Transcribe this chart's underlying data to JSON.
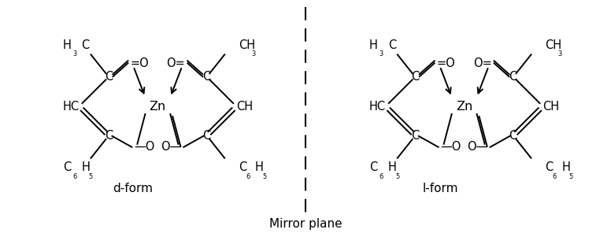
{
  "bg_color": "#ffffff",
  "fig_width": 7.76,
  "fig_height": 2.96,
  "dpi": 100,
  "mirror_label": "Mirror plane",
  "d_form_label": "d-form",
  "l_form_label": "l-form"
}
